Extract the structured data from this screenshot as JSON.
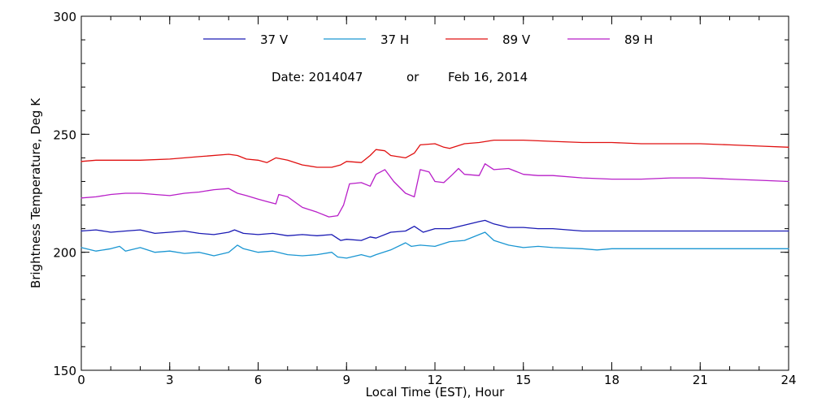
{
  "chart_data": {
    "type": "line",
    "title": "",
    "xlabel": "Local Time (EST), Hour",
    "ylabel": "Brightness Temperature, Deg K",
    "xlim": [
      0,
      24
    ],
    "ylim": [
      150,
      300
    ],
    "x_major_ticks": [
      0,
      3,
      6,
      9,
      12,
      15,
      18,
      21,
      24
    ],
    "x_tick_labels": [
      "0",
      "3",
      "6",
      "9",
      "12",
      "15",
      "18",
      "21",
      "24"
    ],
    "x_minor_step": 1,
    "y_major_ticks": [
      150,
      200,
      250,
      300
    ],
    "y_tick_labels": [
      "150",
      "200",
      "250",
      "300"
    ],
    "y_minor_step": 10,
    "grid": false,
    "legend_position": "top",
    "annotation": {
      "date_label": "Date: 2014047",
      "connector": "or",
      "date_alt": "Feb 16, 2014"
    },
    "series": [
      {
        "name": "37 V",
        "color": "#1a1ab4",
        "points": [
          [
            0,
            209
          ],
          [
            0.5,
            209.5
          ],
          [
            1,
            208.5
          ],
          [
            1.5,
            209
          ],
          [
            2,
            209.5
          ],
          [
            2.5,
            208
          ],
          [
            3,
            208.5
          ],
          [
            3.5,
            209
          ],
          [
            4,
            208
          ],
          [
            4.5,
            207.5
          ],
          [
            5,
            208.5
          ],
          [
            5.2,
            209.5
          ],
          [
            5.5,
            208
          ],
          [
            6,
            207.5
          ],
          [
            6.5,
            208
          ],
          [
            7,
            207
          ],
          [
            7.5,
            207.5
          ],
          [
            8,
            207
          ],
          [
            8.5,
            207.5
          ],
          [
            8.8,
            205
          ],
          [
            9,
            205.5
          ],
          [
            9.5,
            205
          ],
          [
            9.8,
            206.5
          ],
          [
            10,
            206
          ],
          [
            10.5,
            208.5
          ],
          [
            11,
            209
          ],
          [
            11.3,
            211
          ],
          [
            11.6,
            208.5
          ],
          [
            12,
            210
          ],
          [
            12.5,
            210
          ],
          [
            13,
            211.5
          ],
          [
            13.5,
            213
          ],
          [
            13.7,
            213.5
          ],
          [
            14,
            212
          ],
          [
            14.5,
            210.5
          ],
          [
            15,
            210.5
          ],
          [
            15.5,
            210
          ],
          [
            16,
            210
          ],
          [
            17,
            209
          ],
          [
            18,
            209
          ],
          [
            19,
            209
          ],
          [
            20,
            209
          ],
          [
            21,
            209
          ],
          [
            22,
            209
          ],
          [
            23,
            209
          ],
          [
            24,
            209
          ]
        ]
      },
      {
        "name": "37 H",
        "color": "#1a96d2",
        "points": [
          [
            0,
            202
          ],
          [
            0.5,
            200.5
          ],
          [
            1,
            201.5
          ],
          [
            1.3,
            202.5
          ],
          [
            1.5,
            200.5
          ],
          [
            2,
            202
          ],
          [
            2.5,
            200
          ],
          [
            3,
            200.5
          ],
          [
            3.5,
            199.5
          ],
          [
            4,
            200
          ],
          [
            4.5,
            198.5
          ],
          [
            5,
            200
          ],
          [
            5.3,
            203
          ],
          [
            5.5,
            201.5
          ],
          [
            6,
            200
          ],
          [
            6.5,
            200.5
          ],
          [
            7,
            199
          ],
          [
            7.5,
            198.5
          ],
          [
            8,
            199
          ],
          [
            8.5,
            200
          ],
          [
            8.7,
            198
          ],
          [
            9,
            197.5
          ],
          [
            9.5,
            199
          ],
          [
            9.8,
            198
          ],
          [
            10,
            199
          ],
          [
            10.5,
            201
          ],
          [
            11,
            204
          ],
          [
            11.2,
            202.5
          ],
          [
            11.5,
            203
          ],
          [
            12,
            202.5
          ],
          [
            12.5,
            204.5
          ],
          [
            13,
            205
          ],
          [
            13.5,
            207.5
          ],
          [
            13.7,
            208.5
          ],
          [
            14,
            205
          ],
          [
            14.5,
            203
          ],
          [
            15,
            202
          ],
          [
            15.5,
            202.5
          ],
          [
            16,
            202
          ],
          [
            17,
            201.5
          ],
          [
            17.5,
            201
          ],
          [
            18,
            201.5
          ],
          [
            19,
            201.5
          ],
          [
            20,
            201.5
          ],
          [
            21,
            201.5
          ],
          [
            22,
            201.5
          ],
          [
            23,
            201.5
          ],
          [
            24,
            201.5
          ]
        ]
      },
      {
        "name": "89 V",
        "color": "#e01010",
        "points": [
          [
            0,
            238.5
          ],
          [
            0.5,
            239
          ],
          [
            1,
            239
          ],
          [
            2,
            239
          ],
          [
            3,
            239.5
          ],
          [
            4,
            240.5
          ],
          [
            5,
            241.5
          ],
          [
            5.3,
            241
          ],
          [
            5.6,
            239.5
          ],
          [
            6,
            239
          ],
          [
            6.3,
            238
          ],
          [
            6.6,
            240
          ],
          [
            7,
            239
          ],
          [
            7.5,
            237
          ],
          [
            8,
            236
          ],
          [
            8.5,
            236
          ],
          [
            8.8,
            237
          ],
          [
            9,
            238.5
          ],
          [
            9.5,
            238
          ],
          [
            9.8,
            241
          ],
          [
            10,
            243.5
          ],
          [
            10.3,
            243
          ],
          [
            10.5,
            241
          ],
          [
            11,
            240
          ],
          [
            11.3,
            242
          ],
          [
            11.5,
            245.5
          ],
          [
            12,
            246
          ],
          [
            12.3,
            244.5
          ],
          [
            12.5,
            244
          ],
          [
            13,
            246
          ],
          [
            13.5,
            246.5
          ],
          [
            14,
            247.5
          ],
          [
            15,
            247.5
          ],
          [
            16,
            247
          ],
          [
            17,
            246.5
          ],
          [
            18,
            246.5
          ],
          [
            19,
            246
          ],
          [
            20,
            246
          ],
          [
            21,
            246
          ],
          [
            22,
            245.5
          ],
          [
            23,
            245
          ],
          [
            24,
            244.5
          ]
        ]
      },
      {
        "name": "89 H",
        "color": "#b81ec8",
        "points": [
          [
            0,
            223
          ],
          [
            0.5,
            223.5
          ],
          [
            1,
            224.5
          ],
          [
            1.5,
            225
          ],
          [
            2,
            225
          ],
          [
            2.5,
            224.5
          ],
          [
            3,
            224
          ],
          [
            3.5,
            225
          ],
          [
            4,
            225.5
          ],
          [
            4.5,
            226.5
          ],
          [
            5,
            227
          ],
          [
            5.3,
            225
          ],
          [
            5.6,
            224
          ],
          [
            6,
            222.5
          ],
          [
            6.3,
            221.5
          ],
          [
            6.6,
            220.5
          ],
          [
            6.7,
            224.5
          ],
          [
            7,
            223.5
          ],
          [
            7.5,
            219
          ],
          [
            8,
            217
          ],
          [
            8.4,
            215
          ],
          [
            8.7,
            215.5
          ],
          [
            8.9,
            220
          ],
          [
            9.1,
            229
          ],
          [
            9.5,
            229.5
          ],
          [
            9.8,
            228
          ],
          [
            10,
            233
          ],
          [
            10.3,
            235
          ],
          [
            10.6,
            230
          ],
          [
            11,
            225
          ],
          [
            11.3,
            223.5
          ],
          [
            11.5,
            235
          ],
          [
            11.8,
            234
          ],
          [
            12,
            230
          ],
          [
            12.3,
            229.5
          ],
          [
            12.6,
            233
          ],
          [
            12.8,
            235.5
          ],
          [
            13,
            233
          ],
          [
            13.5,
            232.5
          ],
          [
            13.7,
            237.5
          ],
          [
            14,
            235
          ],
          [
            14.5,
            235.5
          ],
          [
            15,
            233
          ],
          [
            15.5,
            232.5
          ],
          [
            16,
            232.5
          ],
          [
            17,
            231.5
          ],
          [
            18,
            231
          ],
          [
            19,
            231
          ],
          [
            20,
            231.5
          ],
          [
            21,
            231.5
          ],
          [
            22,
            231
          ],
          [
            23,
            230.5
          ],
          [
            24,
            230
          ]
        ]
      }
    ]
  }
}
